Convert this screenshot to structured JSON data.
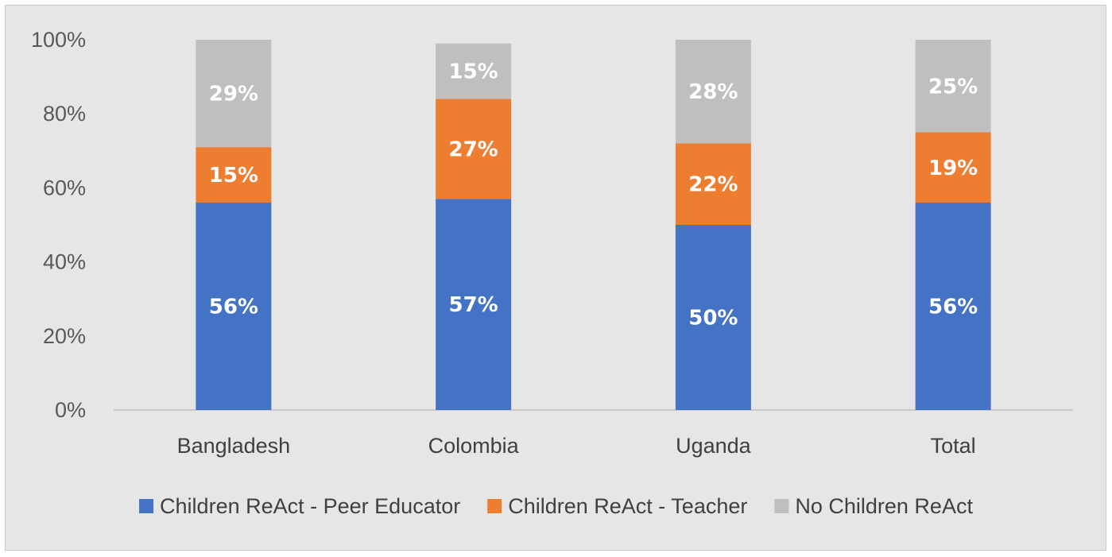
{
  "chart_data": {
    "type": "bar",
    "stacked": true,
    "categories": [
      "Bangladesh",
      "Colombia",
      "Uganda",
      "Total"
    ],
    "series": [
      {
        "name": "Children ReAct - Peer Educator",
        "color": "#4472c4",
        "values": [
          56,
          57,
          50,
          56
        ],
        "labels": [
          "56%",
          "57%",
          "50%",
          "56%"
        ]
      },
      {
        "name": "Children ReAct - Teacher",
        "color": "#ed7d31",
        "values": [
          15,
          27,
          22,
          19
        ],
        "labels": [
          "15%",
          "27%",
          "22%",
          "19%"
        ]
      },
      {
        "name": "No Children ReAct",
        "color": "#bfbfbf",
        "values": [
          29,
          15,
          28,
          25
        ],
        "labels": [
          "29%",
          "15%",
          "28%",
          "25%"
        ]
      }
    ],
    "yticks": [
      "0%",
      "20%",
      "40%",
      "60%",
      "80%",
      "100%"
    ],
    "ylim": [
      0,
      100
    ],
    "grid": false,
    "legend": "bottom"
  }
}
